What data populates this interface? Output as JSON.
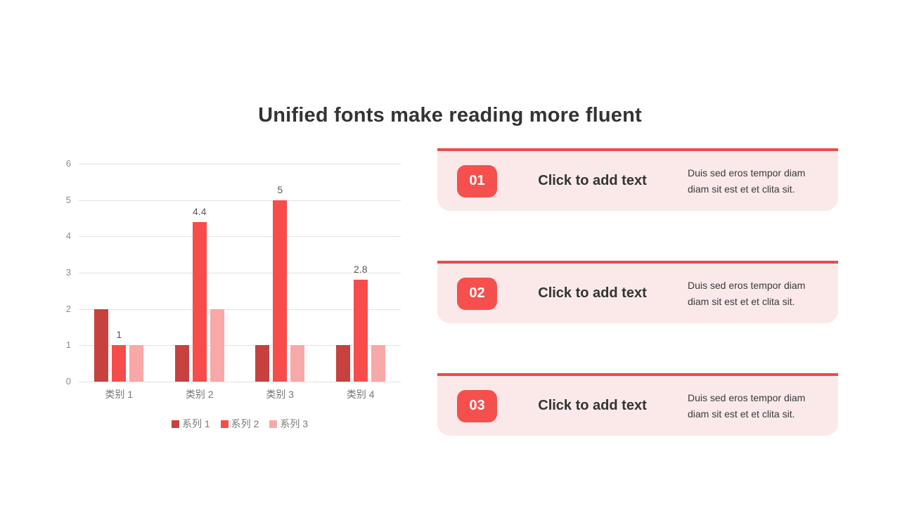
{
  "title": "Unified fonts make reading more fluent",
  "chart_data": {
    "type": "bar",
    "categories": [
      "类别 1",
      "类别 2",
      "类别 3",
      "类别 4"
    ],
    "series": [
      {
        "name": "系列 1",
        "color": "#c7413e",
        "values": [
          2,
          1,
          1,
          1
        ],
        "show_labels": false
      },
      {
        "name": "系列 2",
        "color": "#f64c4c",
        "values": [
          1,
          4.4,
          5,
          2.8
        ],
        "show_labels": true,
        "labels": [
          "1",
          "4.4",
          "5",
          "2.8"
        ]
      },
      {
        "name": "系列 3",
        "color": "#f9a8a8",
        "values": [
          1,
          2,
          1,
          1
        ],
        "show_labels": false
      }
    ],
    "ylim": [
      0,
      6
    ],
    "yticks": [
      0,
      1,
      2,
      3,
      4,
      5,
      6
    ],
    "grid": true,
    "legend_position": "bottom"
  },
  "cards": [
    {
      "number": "01",
      "heading": "Click to add text",
      "body": "Duis sed eros tempor diam diam sit est et et clita sit."
    },
    {
      "number": "02",
      "heading": "Click to add text",
      "body": "Duis sed eros tempor diam diam sit est et et clita sit."
    },
    {
      "number": "03",
      "heading": "Click to add text",
      "body": "Duis sed eros tempor diam diam sit est et et clita sit."
    }
  ],
  "colors": {
    "accent_line_red": "#eb4b4b",
    "badge_red": "#f5504e",
    "card_background": "#fbe9e9",
    "series1_red": "#c7413e",
    "series2_red": "#f64c4c",
    "series3_pink": "#f9a8a8",
    "title_text": "#333333",
    "axis_text": "#8c8c8c",
    "grid_line": "#e2e2e2",
    "data_label_text": "#595959"
  }
}
